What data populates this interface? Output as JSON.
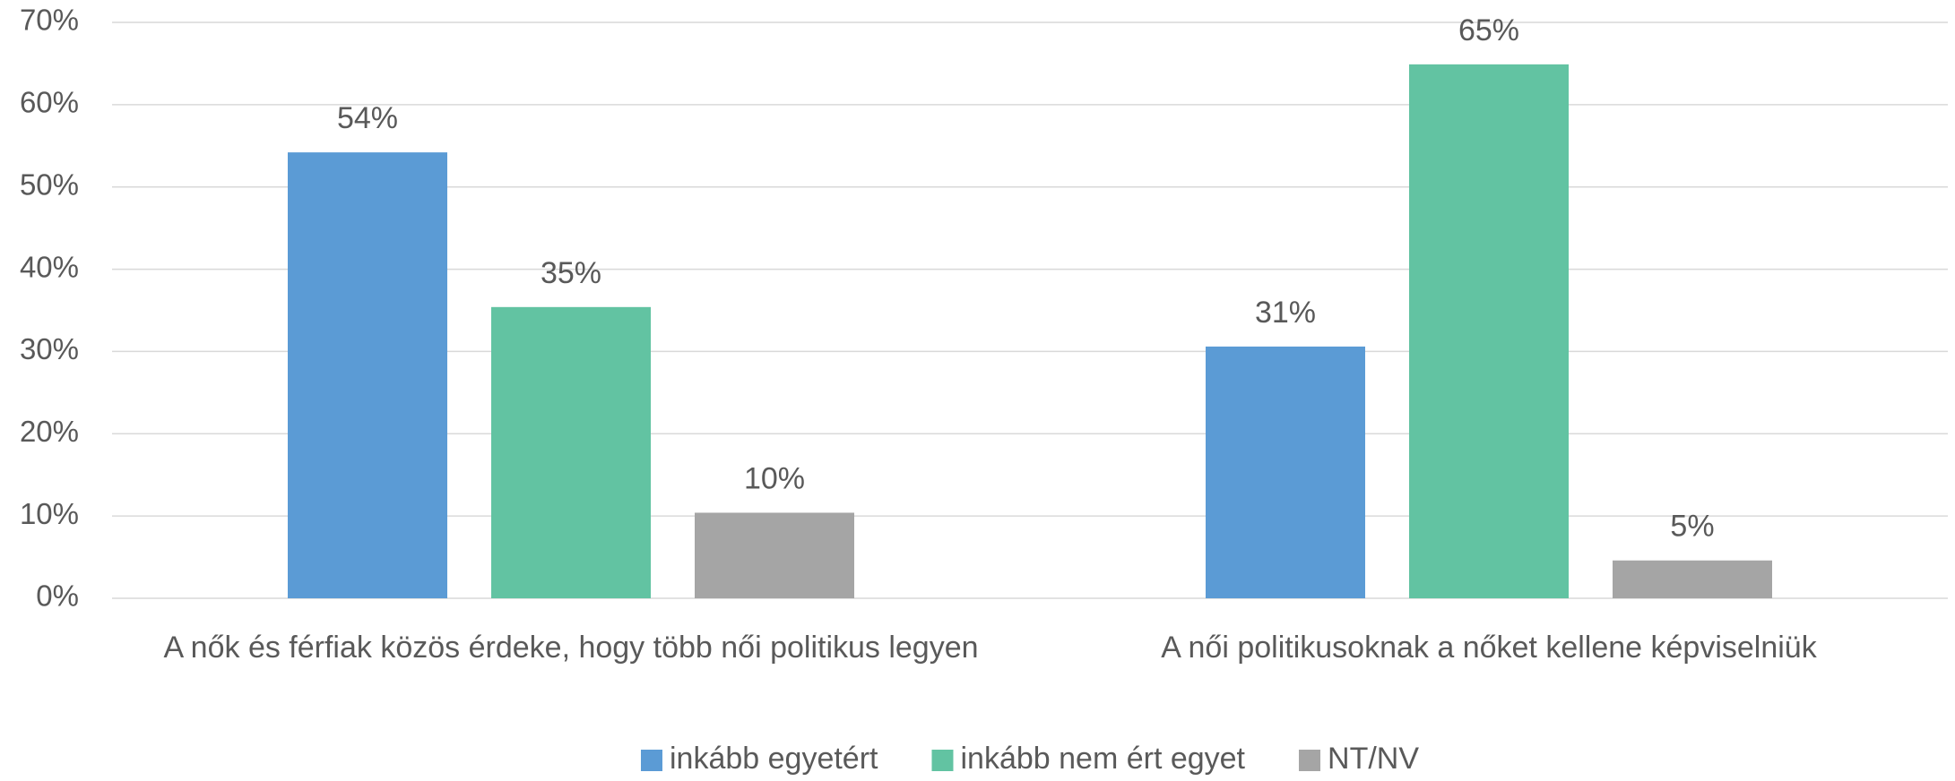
{
  "chart_data": {
    "type": "bar",
    "categories": [
      "A nők és férfiak közös érdeke, hogy több női politikus legyen",
      "A női politikusoknak a nőket kellene képviselniük"
    ],
    "series": [
      {
        "name": "inkább egyetért",
        "color": "#5b9bd5",
        "values": [
          54.2,
          30.6
        ],
        "value_labels": [
          "54%",
          "31%"
        ]
      },
      {
        "name": "inkább nem ért egyet",
        "color": "#62c3a2",
        "values": [
          35.4,
          64.9
        ],
        "value_labels": [
          "35%",
          "65%"
        ]
      },
      {
        "name": "NT/NV",
        "color": "#a5a5a5",
        "values": [
          10.4,
          4.6
        ],
        "value_labels": [
          "10%",
          "5%"
        ]
      }
    ],
    "ylim": [
      0,
      70
    ],
    "yticks": [
      {
        "value": 0,
        "label": "0%"
      },
      {
        "value": 10,
        "label": "10%"
      },
      {
        "value": 20,
        "label": "20%"
      },
      {
        "value": 30,
        "label": "30%"
      },
      {
        "value": 40,
        "label": "40%"
      },
      {
        "value": 50,
        "label": "50%"
      },
      {
        "value": 60,
        "label": "60%"
      },
      {
        "value": 70,
        "label": "70%"
      }
    ],
    "grid": true,
    "legend": "bottom"
  }
}
